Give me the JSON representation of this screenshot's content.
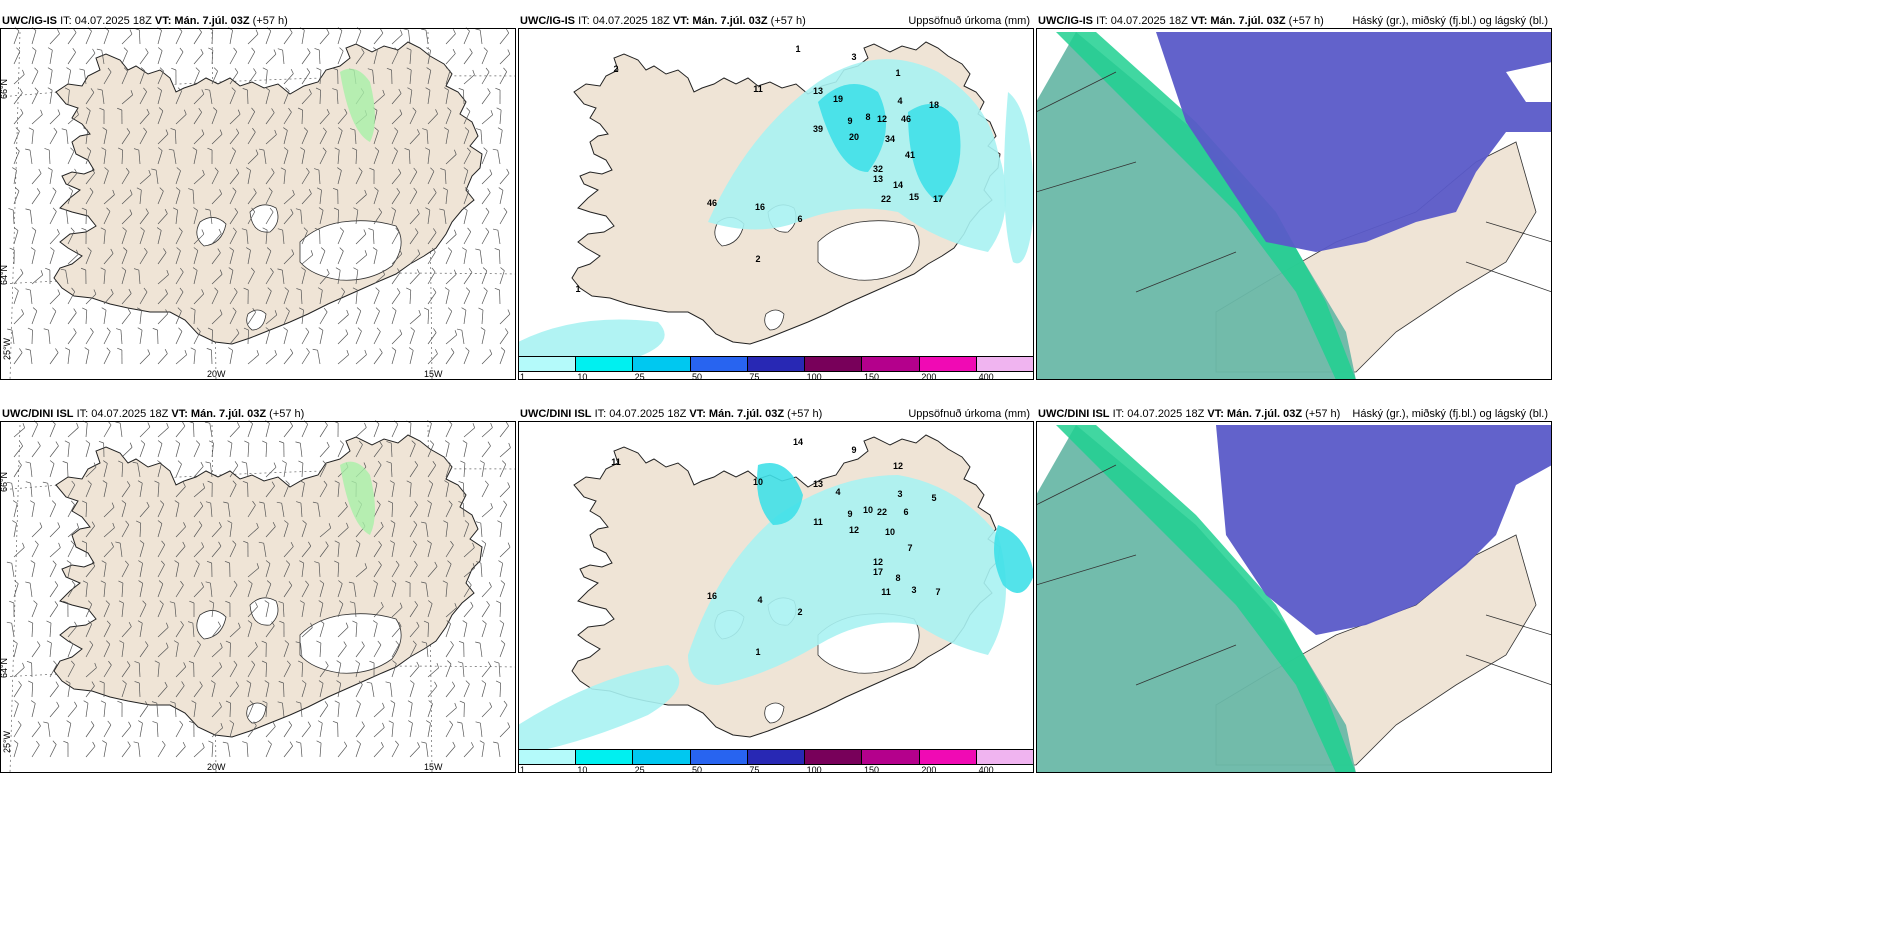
{
  "rows": [
    {
      "model": "UWC/IG-IS",
      "panels": [
        {
          "kind": "wind",
          "model": "UWC/IG-IS",
          "it": "IT: 04.07.2025 18Z",
          "vt_label": "VT:",
          "vt_value": "Mán. 7.júl. 03Z",
          "lead": "(+57 h)",
          "right_title": ""
        },
        {
          "kind": "precip",
          "model": "UWC/IG-IS",
          "it": "IT: 04.07.2025 18Z",
          "vt_label": "VT:",
          "vt_value": "Mán. 7.júl. 03Z",
          "lead": "(+57 h)",
          "right_title": "Uppsöfnuð úrkoma (mm)"
        },
        {
          "kind": "cloud",
          "model": "UWC/IG-IS",
          "it": "IT: 04.07.2025 18Z",
          "vt_label": "VT:",
          "vt_value": "Mán. 7.júl. 03Z",
          "lead": "(+57 h)",
          "right_title": "Háský (gr.), miðský (fj.bl.) og lágský (bl.)"
        }
      ]
    },
    {
      "model": "UWC/DINI ISL",
      "panels": [
        {
          "kind": "wind",
          "model": "UWC/DINI ISL",
          "it": "IT: 04.07.2025 18Z",
          "vt_label": "VT:",
          "vt_value": "Mán. 7.júl. 03Z",
          "lead": "(+57 h)",
          "right_title": ""
        },
        {
          "kind": "precip",
          "model": "UWC/DINI ISL",
          "it": "IT: 04.07.2025 18Z",
          "vt_label": "VT:",
          "vt_value": "Mán. 7.júl. 03Z",
          "lead": "(+57 h)",
          "right_title": "Uppsöfnuð úrkoma (mm)"
        },
        {
          "kind": "cloud",
          "model": "UWC/DINI ISL",
          "it": "IT: 04.07.2025 18Z",
          "vt_label": "VT:",
          "vt_value": "Mán. 7.júl. 03Z",
          "lead": "(+57 h)",
          "right_title": "Háský (gr.), miðský (fj.bl.) og lágský (bl.)"
        }
      ]
    }
  ],
  "axis_labels": {
    "lat_66": "66°N",
    "lat_64": "64°N",
    "lon_25": "25°W",
    "lon_20": "20W",
    "lon_15": "15W"
  },
  "precip_legend": {
    "thresholds": [
      "1",
      "10",
      "25",
      "50",
      "75",
      "100",
      "150",
      "200",
      "400"
    ],
    "colors": [
      "#b4fafa",
      "#00f0f0",
      "#00c8f0",
      "#2864f0",
      "#2828b4",
      "#78005a",
      "#b4008c",
      "#f00ab4",
      "#f0b4f0"
    ]
  },
  "colors": {
    "land": "#efe4d6",
    "precip_light": "#a8f2f2",
    "precip_mid": "#40e0e8",
    "low_cloud": "#6ab8a8",
    "mid_cloud": "#20d090",
    "high_cloud": "#5a5ac8"
  },
  "precip_values_top": [
    "1",
    "3",
    "2",
    "1",
    "11",
    "13",
    "19",
    "4",
    "18",
    "39",
    "20",
    "8",
    "12",
    "34",
    "46",
    "9",
    "41",
    "32",
    "13",
    "14",
    "22",
    "17",
    "16",
    "46",
    "15",
    "6",
    "2",
    "1"
  ],
  "precip_values_bottom": [
    "14",
    "9",
    "11",
    "12",
    "10",
    "13",
    "4",
    "3",
    "5",
    "11",
    "12",
    "10",
    "22",
    "10",
    "6",
    "9",
    "7",
    "12",
    "17",
    "8",
    "11",
    "7",
    "4",
    "16",
    "3",
    "2",
    "1"
  ]
}
